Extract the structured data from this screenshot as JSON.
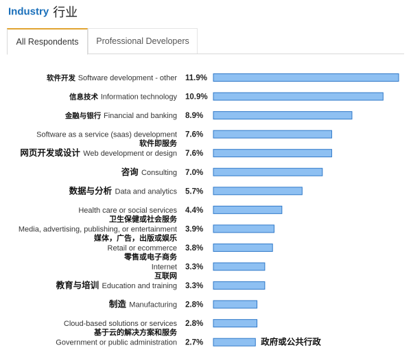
{
  "header": {
    "title_en": "Industry",
    "title_cn": "行业"
  },
  "tabs": [
    {
      "label": "All Respondents",
      "active": true
    },
    {
      "label": "Professional Developers",
      "active": false
    }
  ],
  "colors": {
    "bar_fill": "#8ec0f2",
    "bar_stroke": "#2f78c8",
    "title": "#1a6fba",
    "tab_accent": "#e0a330"
  },
  "chart_data": {
    "type": "bar",
    "orientation": "horizontal",
    "categories": [
      "Software development - other",
      "Information technology",
      "Financial and banking",
      "Software as a service (saas) development",
      "Web development or design",
      "Consulting",
      "Data and analytics",
      "Health care or social services",
      "Media, advertising, publishing, or entertainment",
      "Retail or ecommerce",
      "Internet",
      "Education and training",
      "Manufacturing",
      "Cloud-based solutions or services",
      "Government or public administration"
    ],
    "categories_cn": [
      "软件开发",
      "信息技术",
      "金融与银行",
      "软件即服务",
      "网页开发或设计",
      "咨询",
      "数据与分析",
      "卫生保健或社会服务",
      "媒体，广告，出版或娱乐",
      "零售或电子商务",
      "互联网",
      "教育与培训",
      "制造",
      "基于云的解决方案和服务",
      "政府或公共行政"
    ],
    "values": [
      11.9,
      10.9,
      8.9,
      7.6,
      7.6,
      7.0,
      5.7,
      4.4,
      3.9,
      3.8,
      3.3,
      3.3,
      2.8,
      2.8,
      2.7
    ],
    "value_labels": [
      "11.9%",
      "10.9%",
      "8.9%",
      "7.6%",
      "7.6%",
      "7.0%",
      "5.7%",
      "4.4%",
      "3.9%",
      "3.8%",
      "3.3%",
      "3.3%",
      "2.8%",
      "2.8%",
      "2.7%"
    ],
    "xlim": [
      0,
      11.9
    ],
    "title": "",
    "xlabel": "",
    "ylabel": ""
  }
}
